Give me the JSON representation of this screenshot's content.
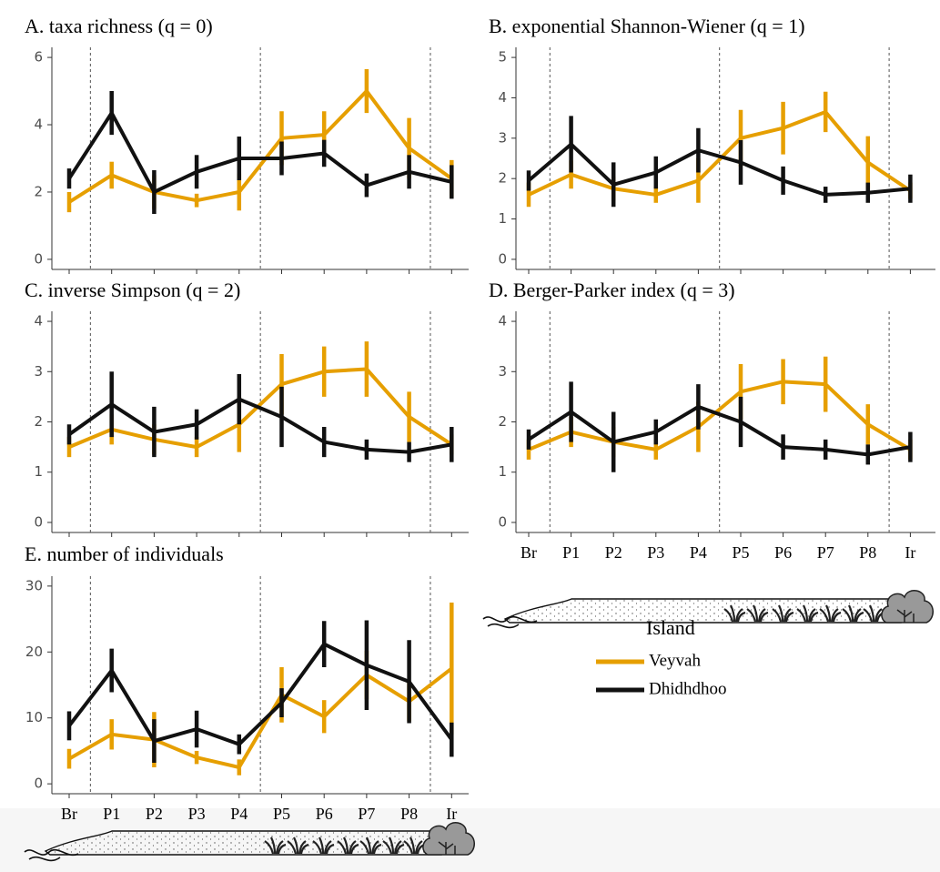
{
  "chart_data": [
    {
      "type": "line",
      "title": "A. taxa richness (q = 0)",
      "categories": [
        null,
        null,
        null,
        null,
        null,
        null,
        null,
        null,
        null,
        null
      ],
      "ylim": [
        -0.3,
        6.3
      ],
      "yticks": [
        0,
        2,
        4,
        6
      ],
      "series": [
        {
          "name": "Veyvah",
          "color": "#E69F00",
          "values": [
            1.7,
            2.5,
            2.0,
            1.75,
            2.0,
            3.6,
            3.7,
            5.0,
            3.3,
            2.4
          ],
          "errors": [
            0.3,
            0.4,
            0.5,
            0.2,
            0.55,
            0.8,
            0.7,
            0.65,
            0.9,
            0.55
          ]
        },
        {
          "name": "Dhidhdhoo",
          "color": "#111111",
          "values": [
            2.4,
            4.35,
            2.0,
            2.6,
            3.0,
            3.0,
            3.15,
            2.2,
            2.6,
            2.3
          ],
          "errors": [
            0.3,
            0.65,
            0.65,
            0.5,
            0.65,
            0.5,
            0.4,
            0.35,
            0.5,
            0.5
          ]
        }
      ]
    },
    {
      "type": "line",
      "title": "B. exponential Shannon-Wiener (q = 1)",
      "categories": [
        null,
        null,
        null,
        null,
        null,
        null,
        null,
        null,
        null,
        null
      ],
      "ylim": [
        -0.25,
        5.25
      ],
      "yticks": [
        0,
        1,
        2,
        3,
        4,
        5
      ],
      "series": [
        {
          "name": "Veyvah",
          "color": "#E69F00",
          "values": [
            1.6,
            2.1,
            1.75,
            1.6,
            1.95,
            3.0,
            3.25,
            3.65,
            2.4,
            1.7
          ],
          "errors": [
            0.3,
            0.35,
            0.3,
            0.2,
            0.55,
            0.7,
            0.65,
            0.5,
            0.65,
            0.2
          ]
        },
        {
          "name": "Dhidhdhoo",
          "color": "#111111",
          "values": [
            1.95,
            2.85,
            1.85,
            2.15,
            2.7,
            2.4,
            1.95,
            1.6,
            1.65,
            1.75
          ],
          "errors": [
            0.25,
            0.7,
            0.55,
            0.4,
            0.55,
            0.55,
            0.35,
            0.2,
            0.25,
            0.35
          ]
        }
      ]
    },
    {
      "type": "line",
      "title": "C. inverse Simpson (q = 2)",
      "categories": [
        null,
        null,
        null,
        null,
        null,
        null,
        null,
        null,
        null,
        null
      ],
      "ylim": [
        -0.2,
        4.2
      ],
      "yticks": [
        0,
        1,
        2,
        3,
        4
      ],
      "series": [
        {
          "name": "Veyvah",
          "color": "#E69F00",
          "values": [
            1.5,
            1.85,
            1.65,
            1.5,
            1.95,
            2.75,
            3.0,
            3.05,
            2.1,
            1.55
          ],
          "errors": [
            0.2,
            0.3,
            0.3,
            0.2,
            0.55,
            0.6,
            0.5,
            0.55,
            0.5,
            0.2
          ]
        },
        {
          "name": "Dhidhdhoo",
          "color": "#111111",
          "values": [
            1.75,
            2.35,
            1.8,
            1.95,
            2.45,
            2.1,
            1.6,
            1.45,
            1.4,
            1.55
          ],
          "errors": [
            0.2,
            0.65,
            0.5,
            0.3,
            0.5,
            0.6,
            0.3,
            0.2,
            0.2,
            0.35
          ]
        }
      ]
    },
    {
      "type": "line",
      "title": "D. Berger-Parker index (q = 3)",
      "categories": [
        "Br",
        "P1",
        "P2",
        "P3",
        "P4",
        "P5",
        "P6",
        "P7",
        "P8",
        "Ir"
      ],
      "ylim": [
        -0.2,
        4.2
      ],
      "yticks": [
        0,
        1,
        2,
        3,
        4
      ],
      "series": [
        {
          "name": "Veyvah",
          "color": "#E69F00",
          "values": [
            1.45,
            1.8,
            1.6,
            1.45,
            1.9,
            2.6,
            2.8,
            2.75,
            1.95,
            1.45
          ],
          "errors": [
            0.2,
            0.3,
            0.3,
            0.2,
            0.5,
            0.55,
            0.45,
            0.55,
            0.4,
            0.2
          ]
        },
        {
          "name": "Dhidhdhoo",
          "color": "#111111",
          "values": [
            1.65,
            2.2,
            1.6,
            1.8,
            2.3,
            2.0,
            1.5,
            1.45,
            1.35,
            1.5
          ],
          "errors": [
            0.2,
            0.6,
            0.6,
            0.25,
            0.45,
            0.5,
            0.25,
            0.2,
            0.2,
            0.3
          ]
        }
      ]
    },
    {
      "type": "line",
      "title": "E. number of individuals",
      "categories": [
        "Br",
        "P1",
        "P2",
        "P3",
        "P4",
        "P5",
        "P6",
        "P7",
        "P8",
        "Ir"
      ],
      "ylim": [
        -1.5,
        31.5
      ],
      "yticks": [
        0,
        10,
        20,
        30
      ],
      "legend_title": "Island",
      "series": [
        {
          "name": "Veyvah",
          "color": "#E69F00",
          "values": [
            3.8,
            7.5,
            6.7,
            4.0,
            2.5,
            13.5,
            10.2,
            16.5,
            12.5,
            17.5
          ],
          "errors": [
            1.5,
            2.3,
            4.2,
            1.0,
            1.2,
            4.2,
            2.5,
            3.7,
            3.0,
            10.0
          ]
        },
        {
          "name": "Dhidhdhoo",
          "color": "#111111",
          "values": [
            8.8,
            17.2,
            6.5,
            8.3,
            6.0,
            12.3,
            21.2,
            18.0,
            15.5,
            6.7
          ],
          "errors": [
            2.2,
            3.3,
            3.3,
            2.8,
            1.5,
            2.2,
            3.5,
            6.8,
            6.3,
            2.6
          ]
        }
      ]
    }
  ]
}
